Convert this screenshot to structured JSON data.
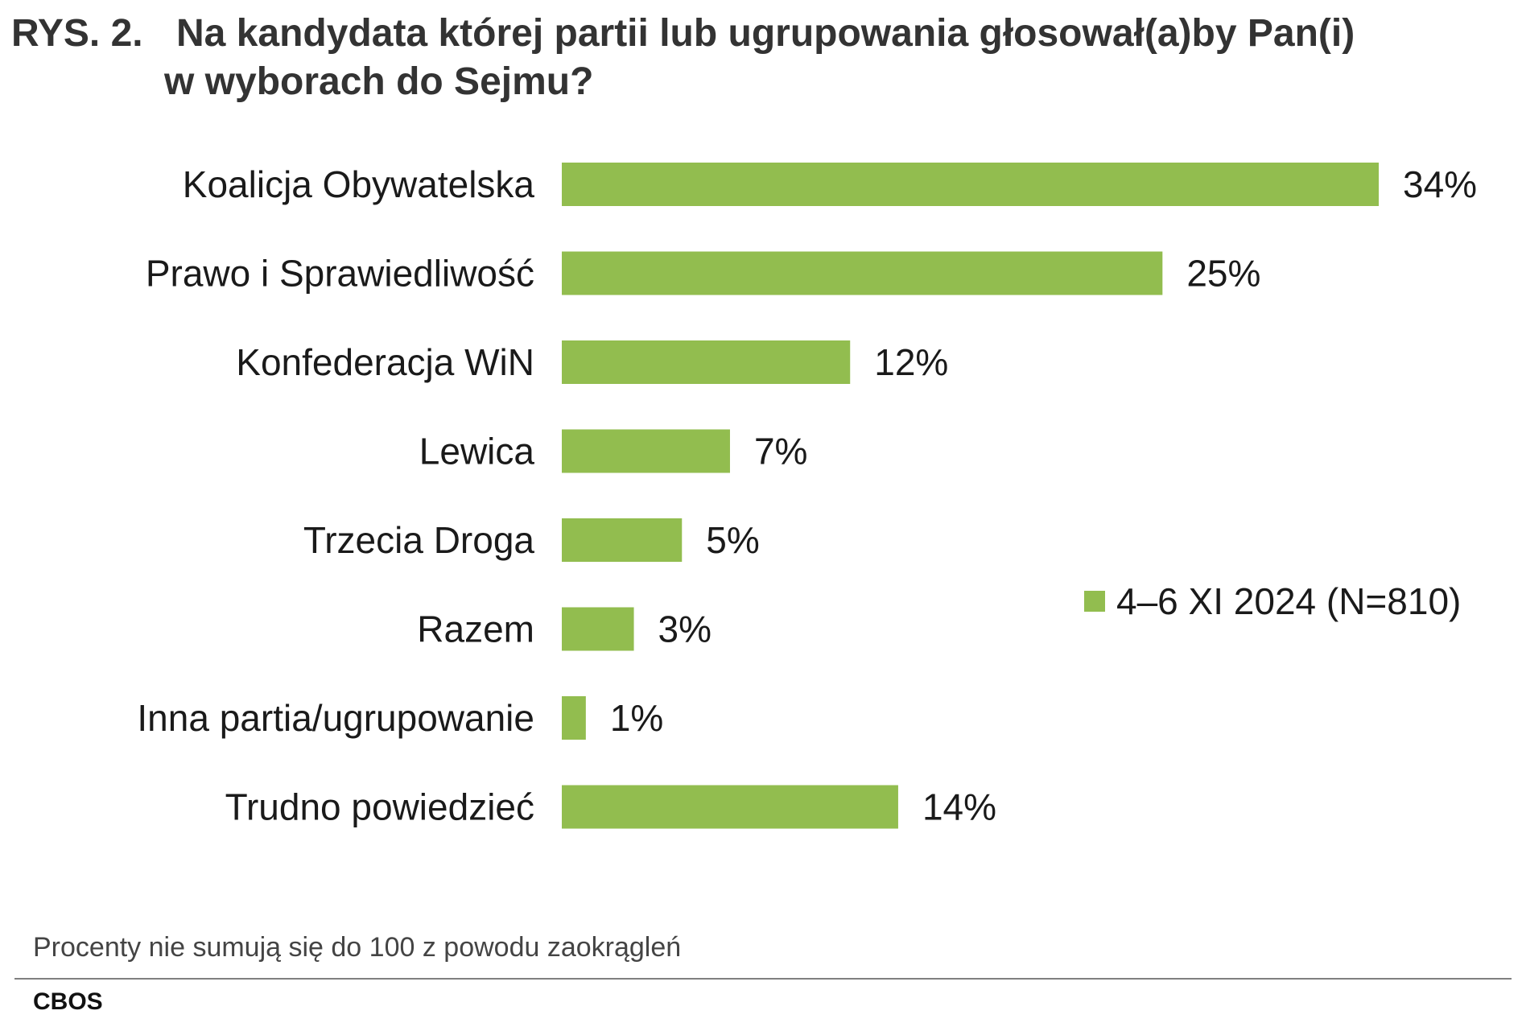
{
  "figure": {
    "title_prefix": "RYS. 2.",
    "title_line1": "Na kandydata której partii lub ugrupowania głosował(a)by Pan(i)",
    "title_line2": "w wyborach do Sejmu?",
    "note": "Procenty nie sumują się do 100 z powodu zaokrągleń",
    "source": "CBOS"
  },
  "chart_data": {
    "type": "bar",
    "orientation": "horizontal",
    "title": "Na kandydata której partii lub ugrupowania głosował(a)by Pan(i) w wyborach do Sejmu?",
    "categories": [
      "Koalicja Obywatelska",
      "Prawo i Sprawiedliwość",
      "Konfederacja WiN",
      "Lewica",
      "Trzecia Droga",
      "Razem",
      "Inna partia/ugrupowanie",
      "Trudno powiedzieć"
    ],
    "series": [
      {
        "name": "4–6 XI 2024 (N=810)",
        "color": "#92bd4f",
        "values": [
          34,
          25,
          12,
          7,
          5,
          3,
          1,
          14
        ],
        "labels": [
          "34%",
          "25%",
          "12%",
          "7%",
          "5%",
          "3%",
          "1%",
          "14%"
        ]
      }
    ],
    "xlim": [
      0,
      34
    ],
    "unit": "%",
    "grid": false,
    "legend_position": "right"
  }
}
